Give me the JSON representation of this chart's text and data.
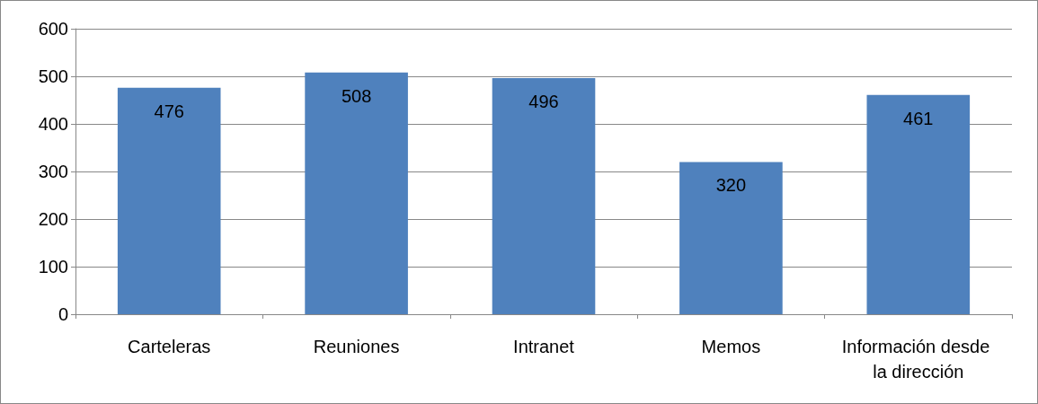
{
  "chart_data": {
    "type": "bar",
    "categories": [
      "Carteleras",
      "Reuniones",
      "Intranet",
      "Memos",
      "Información desde la dirección"
    ],
    "values": [
      476,
      508,
      496,
      320,
      461
    ],
    "color": "#4f81bd",
    "ylim": [
      0,
      600
    ],
    "yticks": [
      0,
      100,
      200,
      300,
      400,
      500,
      600
    ],
    "grid": "y",
    "data_labels": true
  }
}
